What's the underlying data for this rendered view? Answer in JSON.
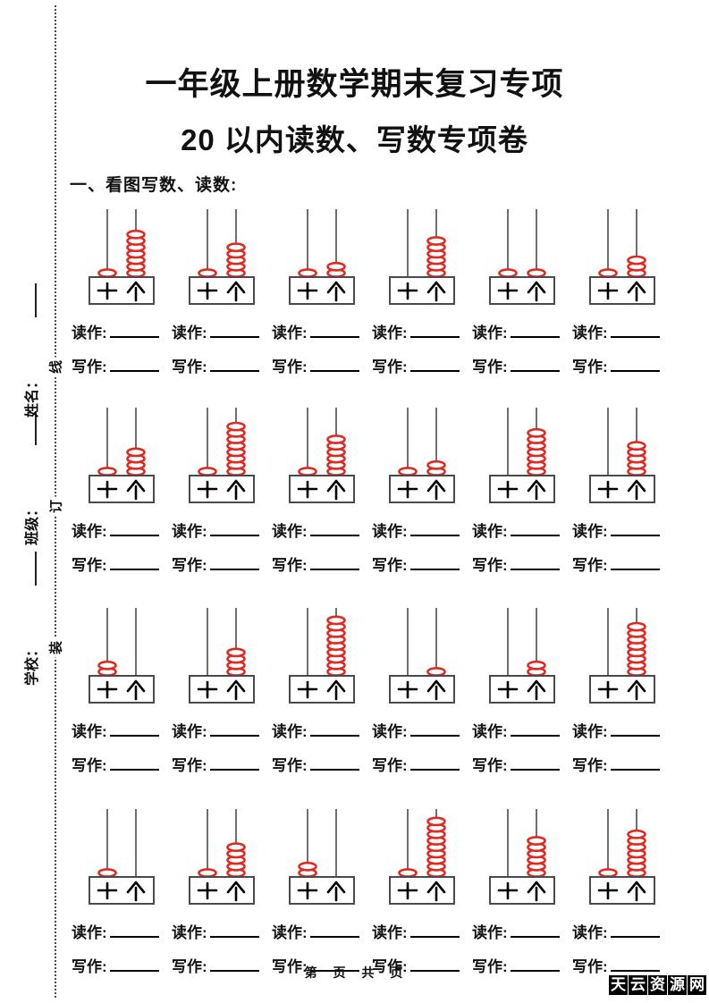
{
  "page": {
    "title_line1": "一年级上册数学期末复习专项",
    "title_line2": "20 以内读数、写数专项卷",
    "section_heading": "一、看图写数、读数:",
    "footer_text": "第 页 共 页",
    "watermark_chars": [
      "天",
      "云",
      "资",
      "源",
      "网"
    ]
  },
  "margin": {
    "fields": [
      "姓名：",
      "班级：",
      "学校："
    ],
    "binding_words": [
      "线",
      "订",
      "装"
    ]
  },
  "abacus": {
    "read_label": "读作:",
    "write_label": "写作:",
    "tens_label": "十",
    "ones_label": "个",
    "bead_color": "#dd2b22",
    "line_color": "#4a4a4a",
    "rows": [
      [
        {
          "tens": 1,
          "ones": 7
        },
        {
          "tens": 1,
          "ones": 5
        },
        {
          "tens": 1,
          "ones": 2
        },
        {
          "tens": 0,
          "ones": 6
        },
        {
          "tens": 1,
          "ones": 1
        },
        {
          "tens": 1,
          "ones": 3
        }
      ],
      [
        {
          "tens": 1,
          "ones": 4
        },
        {
          "tens": 1,
          "ones": 8
        },
        {
          "tens": 1,
          "ones": 6
        },
        {
          "tens": 1,
          "ones": 2
        },
        {
          "tens": 0,
          "ones": 7
        },
        {
          "tens": 0,
          "ones": 5
        }
      ],
      [
        {
          "tens": 2,
          "ones": 0
        },
        {
          "tens": 0,
          "ones": 4
        },
        {
          "tens": 0,
          "ones": 9
        },
        {
          "tens": 0,
          "ones": 1
        },
        {
          "tens": 0,
          "ones": 2
        },
        {
          "tens": 0,
          "ones": 8
        }
      ],
      [
        {
          "tens": 1,
          "ones": 0
        },
        {
          "tens": 1,
          "ones": 5
        },
        {
          "tens": 2,
          "ones": 0
        },
        {
          "tens": 1,
          "ones": 9
        },
        {
          "tens": 0,
          "ones": 6
        },
        {
          "tens": 1,
          "ones": 7
        }
      ]
    ]
  }
}
